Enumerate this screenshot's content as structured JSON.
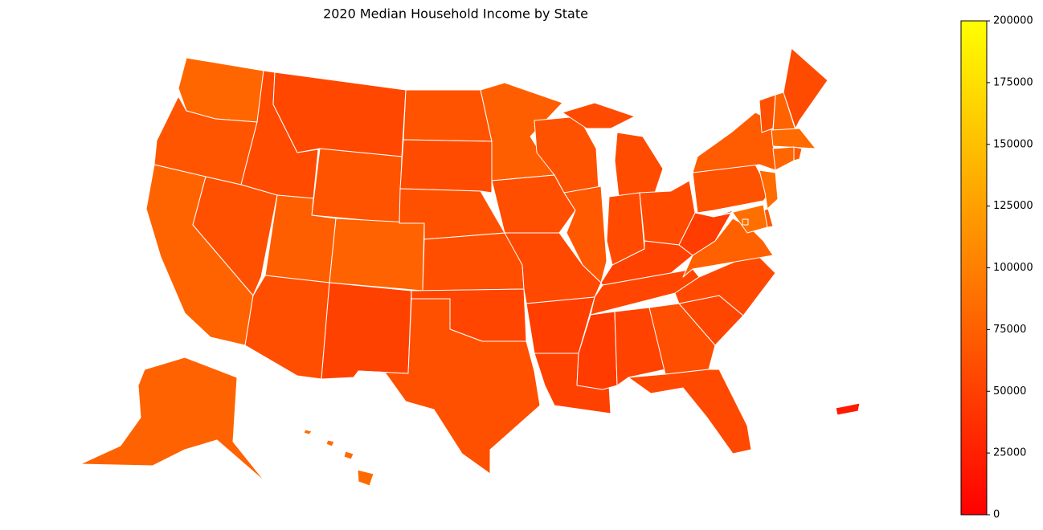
{
  "chart_data": {
    "type": "choropleth",
    "title": "2020 Median Household Income by State",
    "colormap": "autumn",
    "border_color": "#ffffff",
    "values": [
      80000,
      67000,
      78000,
      58000,
      63000,
      56000,
      65000,
      74000,
      61000,
      77000,
      51000,
      65000,
      59000,
      63000,
      61000,
      54000,
      63000,
      74000,
      61000,
      57000,
      49000,
      51000,
      64000,
      69000,
      59000,
      58000,
      58000,
      52000,
      54000,
      46000,
      52000,
      61000,
      57000,
      55000,
      57000,
      76000,
      48000,
      64000,
      71000,
      63000,
      78000,
      59000,
      84000,
      79000,
      70000,
      85000,
      69000,
      87000,
      90000,
      77000,
      83000,
      21000
    ],
    "clim": [
      0,
      200000
    ],
    "cticks": [
      0,
      25000,
      50000,
      75000,
      100000,
      125000,
      150000,
      175000,
      200000
    ]
  }
}
